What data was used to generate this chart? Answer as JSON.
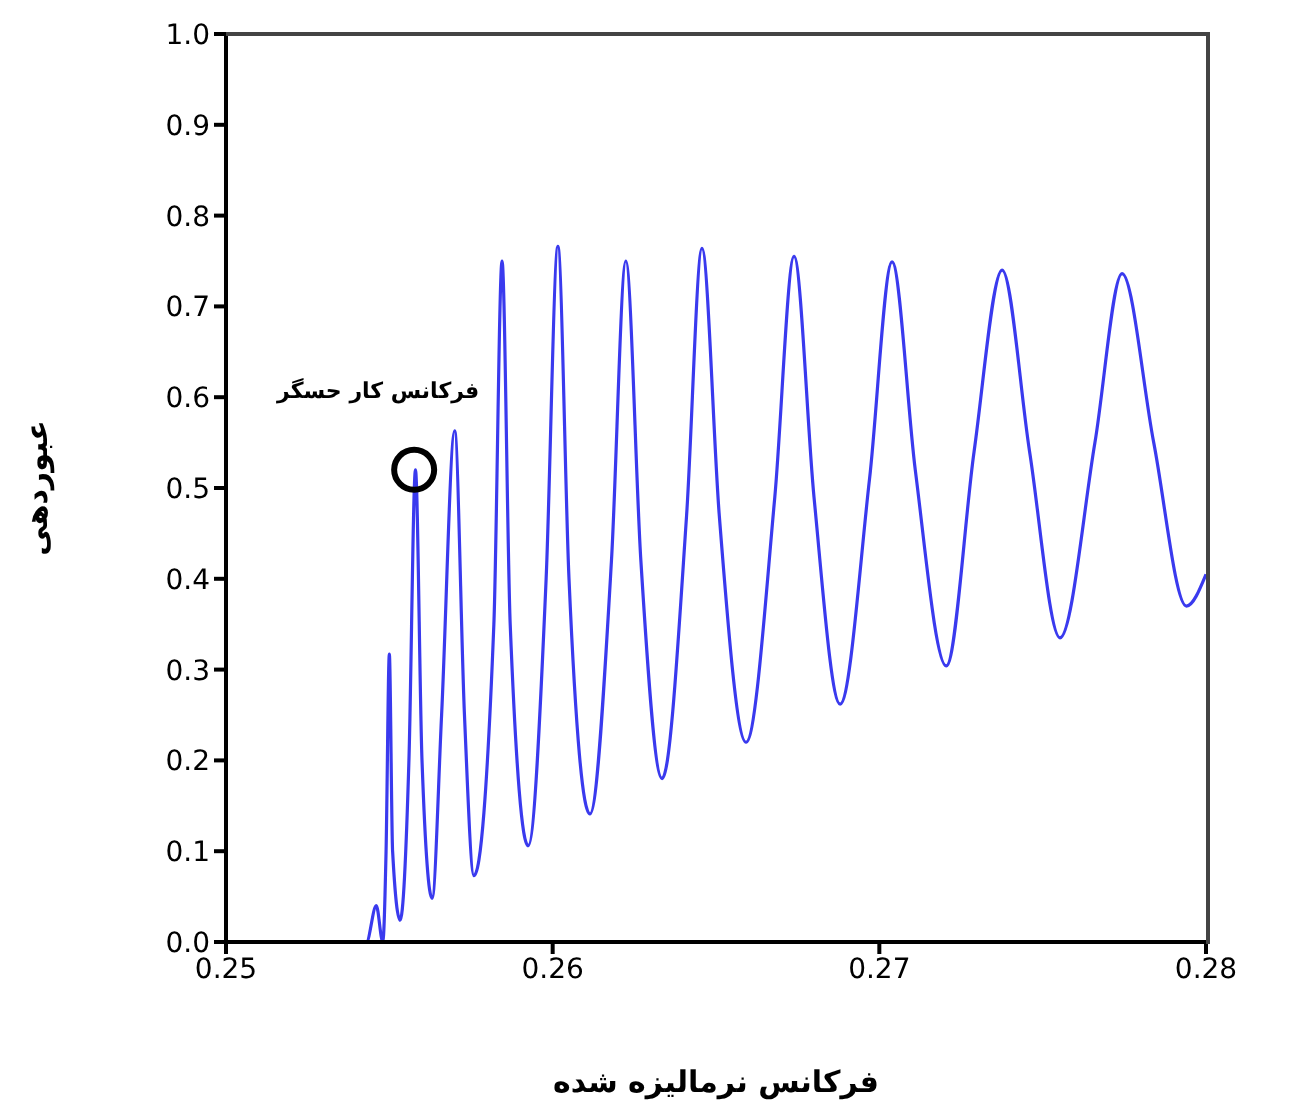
{
  "chart_data": {
    "type": "line",
    "xlabel": "فرکانس نرمالیزه شده",
    "ylabel": "عبوردهی",
    "xlim": [
      0.25,
      0.28
    ],
    "xticks": [
      0.25,
      0.26,
      0.27,
      0.28
    ],
    "ylim": [
      0,
      1
    ],
    "yticks": [
      {
        "value": 0,
        "label": "0.0"
      },
      {
        "value": 0.1,
        "label": "0.1"
      },
      {
        "value": 0.2,
        "label": "0.2"
      },
      {
        "value": 0.3,
        "label": "0.3"
      },
      {
        "value": 0.4,
        "label": "0.4"
      },
      {
        "value": 0.5,
        "label": "0.5"
      },
      {
        "value": 0.6,
        "label": "0.6"
      },
      {
        "value": 0.7,
        "label": "0.7"
      },
      {
        "value": 0.8,
        "label": "0.8"
      },
      {
        "value": 0.9,
        "label": "0.9"
      },
      {
        "value": 1,
        "label": "1.0"
      }
    ],
    "grid": false,
    "legend": false,
    "marker": "none",
    "line_style": "solid",
    "annotations": [
      {
        "text": "فرکانس کار حسگر",
        "x": 0.25576,
        "y": 0.52
      }
    ],
    "series": [
      {
        "color": "#3a3aee",
        "x": [
          0.25,
          0.2543,
          0.2546,
          0.2548,
          0.2549,
          0.255,
          0.2551,
          0.25533,
          0.2556,
          0.2558,
          0.256,
          0.25631,
          0.2566,
          0.257,
          0.2573,
          0.25759,
          0.2582,
          0.25845,
          0.2587,
          0.25925,
          0.2598,
          0.26016,
          0.2605,
          0.26114,
          0.2618,
          0.26224,
          0.2627,
          0.26335,
          0.2641,
          0.26457,
          0.2651,
          0.26592,
          0.2668,
          0.26739,
          0.268,
          0.2688,
          0.2697,
          0.27039,
          0.2711,
          0.27205,
          0.2729,
          0.27376,
          0.2746,
          0.27553,
          0.2766,
          0.27743,
          0.2784,
          0.2794,
          0.28
        ],
        "values": [
          0,
          0,
          0.04,
          0,
          0.1,
          0.317,
          0.1,
          0.024,
          0.2,
          0.52,
          0.2,
          0.048,
          0.25,
          0.563,
          0.25,
          0.073,
          0.35,
          0.75,
          0.35,
          0.106,
          0.4,
          0.766,
          0.4,
          0.141,
          0.42,
          0.75,
          0.42,
          0.18,
          0.47,
          0.764,
          0.47,
          0.22,
          0.49,
          0.755,
          0.49,
          0.262,
          0.51,
          0.749,
          0.52,
          0.304,
          0.54,
          0.74,
          0.54,
          0.335,
          0.55,
          0.736,
          0.55,
          0.37,
          0.405
        ]
      }
    ]
  }
}
